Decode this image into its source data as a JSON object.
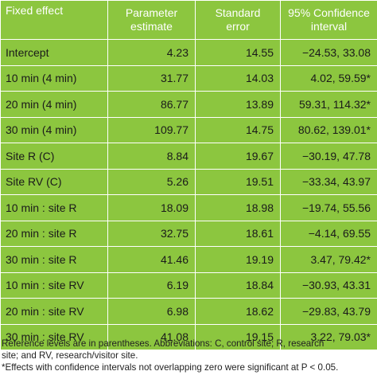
{
  "table": {
    "headers": [
      {
        "line1": "Fixed effect",
        "line2": ""
      },
      {
        "line1": "Parameter",
        "line2": "estimate"
      },
      {
        "line1": "Standard",
        "line2": "error"
      },
      {
        "line1": "95% Confidence",
        "line2": "interval"
      }
    ],
    "rows": [
      {
        "effect": "Intercept",
        "estimate": "4.23",
        "se": "14.55",
        "ci": "−24.53, 33.08"
      },
      {
        "effect": "10 min (4 min)",
        "estimate": "31.77",
        "se": "14.03",
        "ci": "4.02, 59.59*"
      },
      {
        "effect": "20 min (4 min)",
        "estimate": "86.77",
        "se": "13.89",
        "ci": "59.31, 114.32*"
      },
      {
        "effect": "30 min (4 min)",
        "estimate": "109.77",
        "se": "14.75",
        "ci": "80.62, 139.01*"
      },
      {
        "effect": "Site R (C)",
        "estimate": "8.84",
        "se": "19.67",
        "ci": "−30.19, 47.78"
      },
      {
        "effect": "Site RV (C)",
        "estimate": "5.26",
        "se": "19.51",
        "ci": "−33.34, 43.97"
      },
      {
        "effect": "10 min : site R",
        "estimate": "18.09",
        "se": "18.98",
        "ci": "−19.74, 55.56"
      },
      {
        "effect": "20 min : site R",
        "estimate": "32.75",
        "se": "18.61",
        "ci": "−4.14, 69.55"
      },
      {
        "effect": "30 min : site R",
        "estimate": "41.46",
        "se": "19.19",
        "ci": "3.47, 79.42*"
      },
      {
        "effect": "10 min : site RV",
        "estimate": "6.19",
        "se": "18.84",
        "ci": "−30.93, 43.31"
      },
      {
        "effect": "20 min : site RV",
        "estimate": "6.98",
        "se": "18.62",
        "ci": "−29.83, 43.79"
      },
      {
        "effect": "30 min : site RV",
        "estimate": "41.08",
        "se": "19.15",
        "ci": "3.22, 79.03*"
      }
    ]
  },
  "footnotes": {
    "line1": "Reference levels are in parentheses. Abbreviations: C, control site; R, research",
    "line2": "site; and RV, research/visitor site.",
    "line3": "*Effects with confidence intervals not overlapping zero were significant at P < 0.05."
  },
  "colors": {
    "table_background": "#8cc63f",
    "header_text": "#ffffff",
    "grid_lines": "#ffffff"
  }
}
